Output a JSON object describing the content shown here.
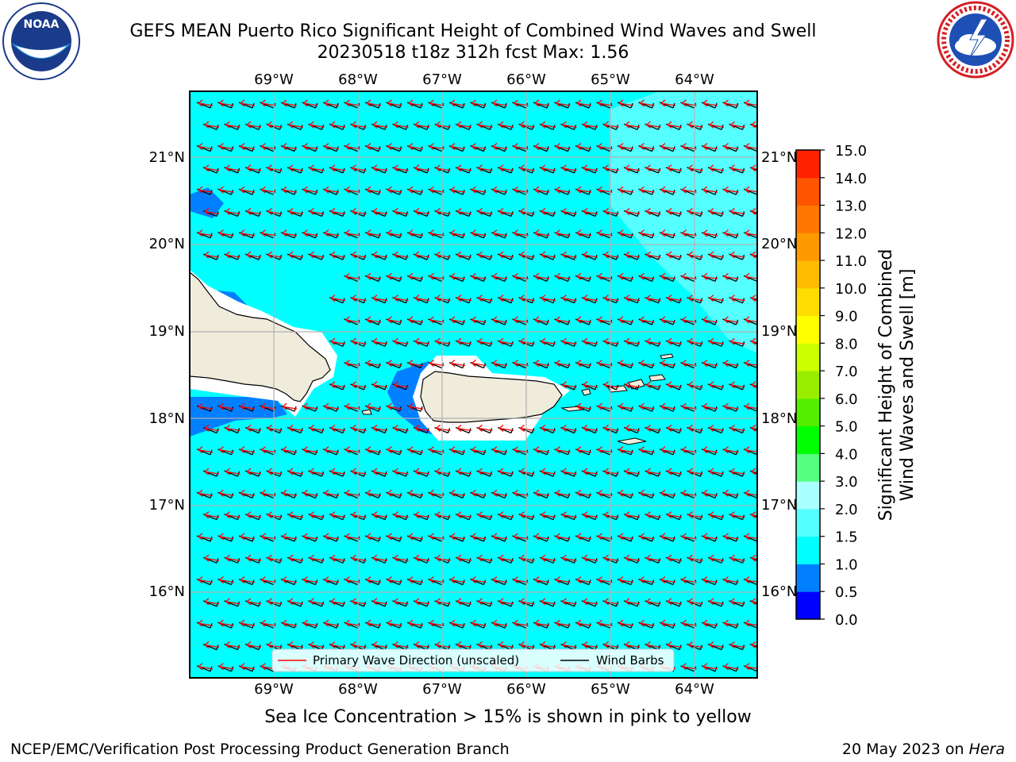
{
  "title_line1": "GEFS MEAN Puerto Rico Significant Height of Combined Wind Waves and Swell",
  "title_line2": "20230518 t18z 312h fcst   Max: 1.56",
  "logos": {
    "left": "noaa-logo",
    "left_text": "NOAA",
    "right": "nws-logo"
  },
  "map": {
    "lon_ticks": [
      "69°W",
      "68°W",
      "67°W",
      "66°W",
      "65°W",
      "64°W"
    ],
    "lat_ticks": [
      "21°N",
      "20°N",
      "19°N",
      "18°N",
      "17°N",
      "16°N"
    ],
    "ocean_color": "#00ffff",
    "light_color": "#55ffff",
    "blue_color": "#0080ff",
    "land_color": "#efecdc",
    "legend": {
      "primary": "Primary Wave Direction (unscaled)",
      "barbs": "Wind Barbs",
      "primary_color": "#ff0000",
      "barbs_color": "#000000"
    }
  },
  "colorbar": {
    "label_line1": "Significant Height of Combined",
    "label_line2": "Wind Waves and Swell [m]",
    "ticks": [
      "0.0",
      "0.5",
      "1.0",
      "1.5",
      "2.0",
      "3.0",
      "4.0",
      "5.0",
      "6.0",
      "7.0",
      "8.0",
      "9.0",
      "10.0",
      "11.0",
      "12.0",
      "13.0",
      "14.0",
      "15.0"
    ],
    "colors": [
      "#0000ff",
      "#0080ff",
      "#00ffff",
      "#55ffff",
      "#aaffff",
      "#55ff80",
      "#00ff00",
      "#55ee00",
      "#99ee00",
      "#ccff00",
      "#ffff00",
      "#ffdd00",
      "#ffbb00",
      "#ff9900",
      "#ff7700",
      "#ff5500",
      "#ff2200"
    ]
  },
  "chart_data": {
    "type": "heatmap",
    "title": "GEFS MEAN Puerto Rico Significant Height of Combined Wind Waves and Swell",
    "subtitle": "20230518 t18z 312h fcst   Max: 1.56",
    "x_ticks": [
      "69°W",
      "68°W",
      "67°W",
      "66°W",
      "65°W",
      "64°W"
    ],
    "y_ticks": [
      "21°N",
      "20°N",
      "19°N",
      "18°N",
      "17°N",
      "16°N"
    ],
    "colorbar_label": "Significant Height of Combined Wind Waves and Swell [m]",
    "colorbar_range": [
      0,
      15
    ],
    "max_value": 1.56
  },
  "footer": {
    "note": "Sea Ice Concentration > 15% is shown in pink to yellow",
    "left": "NCEP/EMC/Verification Post Processing Product Generation Branch",
    "right_prefix": "20 May 2023 on ",
    "right_machine": "Hera"
  }
}
